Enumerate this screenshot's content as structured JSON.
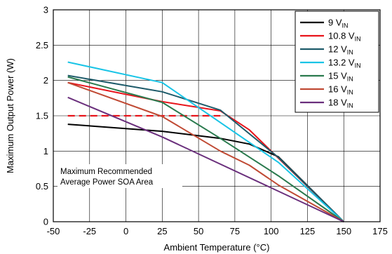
{
  "chart_data": {
    "type": "line",
    "xlabel": "Ambient Temperature (°C)",
    "ylabel": "Maximum Output Power (W)",
    "xlim": [
      -50,
      175
    ],
    "ylim": [
      0,
      3
    ],
    "xticks": [
      -50,
      -25,
      0,
      25,
      50,
      75,
      100,
      125,
      150,
      175
    ],
    "yticks": [
      0,
      0.5,
      1,
      1.5,
      2,
      2.5,
      3
    ],
    "xtick_labels": [
      "-50",
      "-25",
      "0",
      "25",
      "50",
      "75",
      "100",
      "125",
      "150",
      "175"
    ],
    "ytick_labels": [
      "0",
      "0.5",
      "1",
      "1.5",
      "2",
      "2.5",
      "3"
    ],
    "grid": true,
    "legend_position": "top-right",
    "series": [
      {
        "name": "9 V",
        "sub": "IN",
        "color": "#000000",
        "dashed": false,
        "x": [
          -40,
          25,
          65,
          85,
          105,
          150
        ],
        "y": [
          1.38,
          1.28,
          1.18,
          1.1,
          0.92,
          0.0
        ]
      },
      {
        "name": "10.8 V",
        "sub": "IN",
        "color": "#e8141b",
        "dashed": false,
        "x": [
          -40,
          25,
          65,
          85,
          105,
          150
        ],
        "y": [
          1.97,
          1.7,
          1.57,
          1.3,
          0.9,
          0.0
        ]
      },
      {
        "name": "12 V",
        "sub": "IN",
        "color": "#1e5b6a",
        "dashed": false,
        "x": [
          -40,
          25,
          65,
          105,
          150
        ],
        "y": [
          2.07,
          1.84,
          1.58,
          0.91,
          0.0
        ]
      },
      {
        "name": "13.2 V",
        "sub": "IN",
        "color": "#19c4e6",
        "dashed": false,
        "x": [
          -40,
          25,
          105,
          150
        ],
        "y": [
          2.26,
          1.97,
          0.84,
          0.0
        ]
      },
      {
        "name": "15 V",
        "sub": "IN",
        "color": "#2a7a4e",
        "dashed": false,
        "x": [
          -40,
          25,
          65,
          105,
          150
        ],
        "y": [
          2.05,
          1.69,
          1.18,
          0.65,
          0.0
        ]
      },
      {
        "name": "16 V",
        "sub": "IN",
        "color": "#c04a34",
        "dashed": false,
        "x": [
          -40,
          25,
          65,
          85,
          105,
          150
        ],
        "y": [
          1.97,
          1.49,
          1.0,
          0.8,
          0.52,
          0.0
        ]
      },
      {
        "name": "18 V",
        "sub": "IN",
        "color": "#6a2f7c",
        "dashed": false,
        "x": [
          -40,
          25,
          150
        ],
        "y": [
          1.76,
          1.2,
          0.0
        ]
      }
    ],
    "reference_line": {
      "y": 1.5,
      "x": [
        -40,
        65
      ],
      "color": "#e8141b",
      "dashed": true
    },
    "annotation": {
      "lines": [
        "Maximum Recommended",
        "Average Power SOA Area"
      ]
    }
  }
}
